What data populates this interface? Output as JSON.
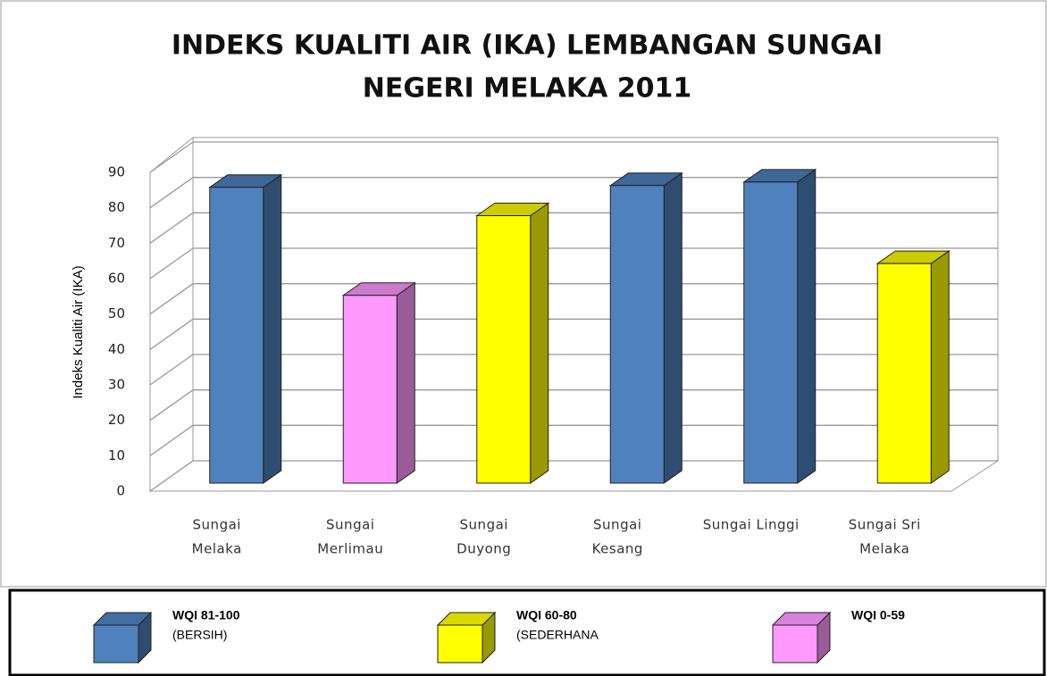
{
  "chart_data": {
    "type": "bar",
    "title": [
      "INDEKS KUALITI AIR (IKA) LEMBANGAN SUNGAI",
      "NEGERI MELAKA 2011"
    ],
    "y_label": "Indeks Kualiti  Air (IKA)",
    "categories": [
      [
        "Sungai",
        "Melaka"
      ],
      [
        "Sungai",
        "Merlimau"
      ],
      [
        "Sungai",
        "Duyong"
      ],
      [
        "Sungai",
        "Kesang"
      ],
      [
        "Sungai Linggi"
      ],
      [
        "Sungai Sri",
        "Melaka"
      ]
    ],
    "values": [
      83.5,
      53,
      75.5,
      84,
      85,
      62
    ],
    "colors": [
      "#4f81bd",
      "#ff99ff",
      "#ffff00",
      "#4f81bd",
      "#4f81bd",
      "#ffff00"
    ],
    "ylim": [
      0,
      90
    ],
    "yticks": [
      0,
      10,
      20,
      30,
      40,
      50,
      60,
      70,
      80,
      90
    ],
    "grid": true,
    "legend": [
      {
        "name": "WQI 81-100",
        "note": "(BERSIH)",
        "color": "#4f81bd"
      },
      {
        "name": "WQI 60-80",
        "note": "(SEDERHANA",
        "color": "#ffff00"
      },
      {
        "name": "WQI 0-59",
        "color": "#ff99ff"
      }
    ]
  }
}
